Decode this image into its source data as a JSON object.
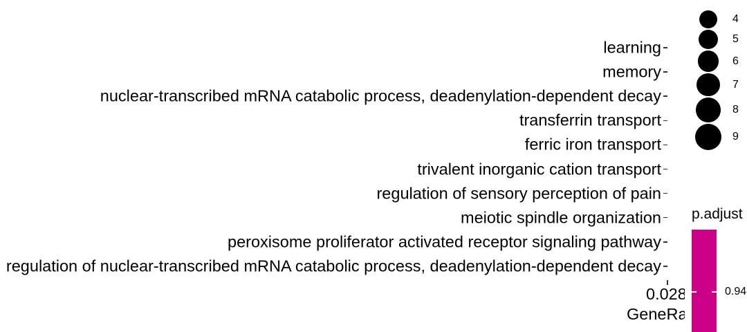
{
  "chart_data": {
    "type": "scatter",
    "y_categories": [
      "learning",
      "memory",
      "nuclear-transcribed mRNA catabolic process, deadenylation-dependent decay",
      "transferrin transport",
      "ferric iron transport",
      "trivalent inorganic cation transport",
      "regulation of sensory perception of pain",
      "meiotic spindle organization",
      "peroxisome proliferator activated receptor signaling pathway",
      "regulation of nuclear-transcribed mRNA catabolic process, deadenylation-dependent decay"
    ],
    "x_tick_labels": [
      "0.028"
    ],
    "xlabel": "GeneRatio",
    "size_legend": {
      "values": [
        4,
        5,
        6,
        7,
        8,
        9
      ],
      "labels": [
        "4",
        "5",
        "6",
        "7",
        "8",
        "9"
      ]
    },
    "color_legend": {
      "title": "p.adjust",
      "tick_labels": [
        "0.94"
      ],
      "color": "#cc0088"
    }
  }
}
